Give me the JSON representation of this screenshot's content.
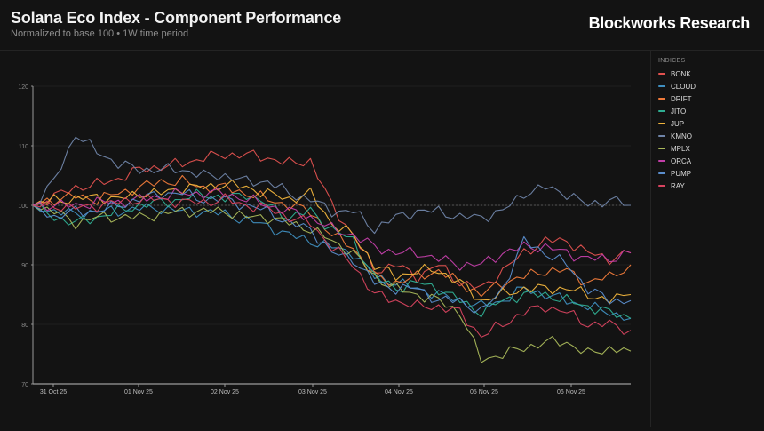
{
  "header": {
    "title": "Solana Eco Index - Component Performance",
    "subtitle": "Normalized to base 100 • 1W time period",
    "brand": "Blockworks Research"
  },
  "legend": {
    "title": "INDICES",
    "items": [
      {
        "label": "BONK",
        "color": "#e2514f"
      },
      {
        "label": "CLOUD",
        "color": "#3f8fc0"
      },
      {
        "label": "DRIFT",
        "color": "#f07a3a"
      },
      {
        "label": "JITO",
        "color": "#2fae92"
      },
      {
        "label": "JUP",
        "color": "#f0b43c"
      },
      {
        "label": "KMNO",
        "color": "#6f84a8"
      },
      {
        "label": "MPLX",
        "color": "#a9b85a"
      },
      {
        "label": "ORCA",
        "color": "#c23ea8"
      },
      {
        "label": "PUMP",
        "color": "#5a8dcc"
      },
      {
        "label": "RAY",
        "color": "#d8435f"
      }
    ]
  },
  "chart_data": {
    "type": "line",
    "title": "Solana Eco Index - Component Performance",
    "subtitle": "Normalized to base 100 • 1W time period",
    "xlabel": "",
    "ylabel": "",
    "ylim": [
      70,
      120
    ],
    "yticks": [
      70,
      80,
      90,
      100,
      110,
      120
    ],
    "xticks": [
      "31 Oct 25",
      "01 Nov 25",
      "02 Nov 25",
      "03 Nov 25",
      "04 Nov 25",
      "05 Nov 25",
      "06 Nov 25"
    ],
    "reference_line": 100,
    "grid": true,
    "legend_position": "right",
    "x": [
      "30 Oct 22:00",
      "31 Oct 04:00",
      "31 Oct 10:00",
      "31 Oct 16:00",
      "31 Oct 22:00",
      "01 Nov 04:00",
      "01 Nov 10:00",
      "01 Nov 16:00",
      "01 Nov 22:00",
      "02 Nov 04:00",
      "02 Nov 10:00",
      "02 Nov 16:00",
      "02 Nov 22:00",
      "03 Nov 04:00",
      "03 Nov 10:00",
      "03 Nov 16:00",
      "03 Nov 22:00",
      "04 Nov 04:00",
      "04 Nov 10:00",
      "04 Nov 16:00",
      "04 Nov 22:00",
      "05 Nov 04:00",
      "05 Nov 10:00",
      "05 Nov 16:00",
      "05 Nov 22:00",
      "06 Nov 04:00",
      "06 Nov 10:00",
      "06 Nov 16:00",
      "06 Nov 22:00"
    ],
    "series": [
      {
        "name": "BONK",
        "values": [
          100,
          101.5,
          103,
          103.5,
          104.5,
          106,
          106.5,
          107,
          108,
          108.5,
          108.5,
          108,
          107,
          107.5,
          100,
          95,
          89,
          90,
          88,
          90,
          87,
          86,
          89,
          92,
          94,
          94,
          92,
          91,
          92
        ]
      },
      {
        "name": "CLOUD",
        "values": [
          100,
          99,
          98.5,
          99,
          99,
          99.5,
          99.5,
          99,
          99,
          98.5,
          97.5,
          96.5,
          95,
          94,
          93,
          92,
          88,
          87,
          86,
          85,
          84,
          83,
          84,
          86,
          85,
          84,
          83,
          82,
          81
        ]
      },
      {
        "name": "DRIFT",
        "values": [
          100,
          101,
          101.5,
          101,
          102,
          103,
          104,
          104,
          103,
          103,
          102,
          101,
          100,
          99,
          95,
          93,
          88,
          87,
          88,
          89,
          87,
          85,
          87,
          88,
          89,
          89,
          87,
          88,
          90
        ]
      },
      {
        "name": "JITO",
        "values": [
          100,
          98,
          97,
          98,
          99,
          100,
          100.5,
          101,
          102,
          101,
          102,
          100,
          98,
          99,
          96,
          94,
          88,
          86,
          87,
          86,
          84,
          82,
          84,
          85,
          85,
          84,
          83,
          82,
          81
        ]
      },
      {
        "name": "JUP",
        "values": [
          100,
          101,
          101,
          101.5,
          101,
          102,
          102,
          103,
          103,
          103.5,
          103,
          102,
          101,
          102,
          97,
          95,
          90,
          88,
          89,
          89,
          87,
          84,
          85,
          86,
          86,
          86,
          85,
          84,
          85
        ]
      },
      {
        "name": "KMNO",
        "values": [
          100,
          104,
          112,
          109,
          107,
          106,
          106,
          106,
          105,
          105,
          104,
          104,
          102,
          101,
          99,
          99,
          96,
          98,
          99,
          99,
          98,
          98,
          99,
          102,
          103,
          102,
          100,
          101,
          100
        ]
      },
      {
        "name": "MPLX",
        "values": [
          100,
          99,
          97,
          98,
          98,
          98,
          98.5,
          99,
          99,
          99,
          98,
          98,
          97,
          96,
          94,
          92,
          88,
          86,
          85,
          84,
          82,
          74,
          75,
          76,
          77,
          77,
          75,
          76,
          75.5
        ]
      },
      {
        "name": "ORCA",
        "values": [
          100,
          100,
          100,
          100.5,
          100.5,
          101,
          101.5,
          102,
          102,
          102,
          101,
          100,
          99,
          98,
          96,
          95,
          93,
          92,
          92,
          91,
          90,
          90,
          92,
          93,
          93,
          92,
          91,
          91,
          92
        ]
      },
      {
        "name": "PUMP",
        "values": [
          100,
          98,
          99,
          99,
          100,
          101,
          102,
          102,
          101,
          101,
          100,
          99,
          97,
          96,
          92,
          91,
          87,
          86,
          86,
          84,
          84,
          82,
          86,
          94,
          92,
          90,
          86,
          84,
          84
        ]
      },
      {
        "name": "RAY",
        "values": [
          100,
          100,
          99.5,
          100,
          100.5,
          101,
          101,
          100.5,
          100.5,
          101,
          100,
          99.5,
          98,
          97,
          93,
          90,
          85,
          84,
          83,
          83,
          82,
          78,
          80,
          82,
          83,
          82,
          80,
          80,
          79
        ]
      }
    ]
  }
}
